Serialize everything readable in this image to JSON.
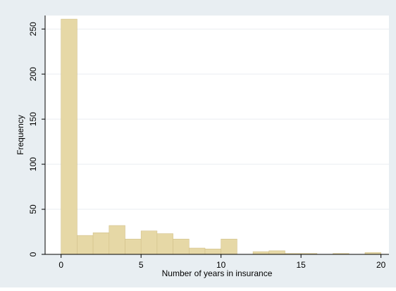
{
  "chart_data": {
    "type": "bar",
    "title": "",
    "xlabel": "Number of years in insurance",
    "ylabel": "Frequency",
    "xlim": [
      -1,
      20.5
    ],
    "ylim": [
      0,
      265
    ],
    "x_ticks": [
      0,
      5,
      10,
      15,
      20
    ],
    "y_ticks": [
      0,
      50,
      100,
      150,
      200,
      250
    ],
    "grid": "horizontal",
    "legend": "none",
    "bin_width": 1,
    "series": [
      {
        "x": [
          0,
          1,
          2,
          3,
          4,
          5,
          6,
          7,
          8,
          9,
          10,
          11,
          12,
          13,
          14,
          15,
          16,
          17,
          18,
          19
        ],
        "values": [
          261,
          21,
          24,
          32,
          17,
          26,
          23,
          17,
          7,
          6,
          17,
          0,
          3,
          4,
          1,
          1,
          0,
          1,
          0,
          2
        ]
      }
    ]
  },
  "colors": {
    "background": "#e8eef2",
    "plot_bg": "#ffffff",
    "bar_fill": "#e6d8a6",
    "bar_stroke": "#d2c18a",
    "axis": "#000000",
    "grid": "#e9eef1",
    "text": "#000000"
  }
}
